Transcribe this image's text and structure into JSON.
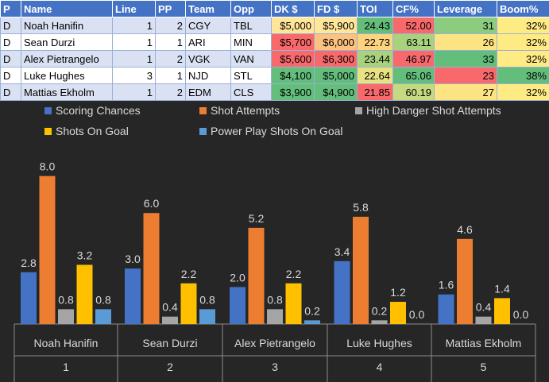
{
  "table": {
    "headers": [
      "P",
      "Name",
      "Line",
      "PP",
      "Team",
      "Opp",
      "DK $",
      "FD $",
      "TOI",
      "CF%",
      "Leverage",
      "Boom%"
    ],
    "rows": [
      [
        "D",
        "Noah Hanifin",
        "1",
        "2",
        "CGY",
        "TBL",
        "$5,000",
        "$5,900",
        "24.43",
        "52.00",
        "31",
        "32%"
      ],
      [
        "D",
        "Sean Durzi",
        "1",
        "1",
        "ARI",
        "MIN",
        "$5,700",
        "$6,000",
        "22.73",
        "63.11",
        "26",
        "32%"
      ],
      [
        "D",
        "Alex Pietrangelo",
        "1",
        "2",
        "VGK",
        "VAN",
        "$5,600",
        "$6,300",
        "23.44",
        "46.97",
        "33",
        "32%"
      ],
      [
        "D",
        "Luke Hughes",
        "3",
        "1",
        "NJD",
        "STL",
        "$4,100",
        "$5,000",
        "22.64",
        "65.06",
        "23",
        "38%"
      ],
      [
        "D",
        "Mattias Ekholm",
        "1",
        "2",
        "EDM",
        "CLS",
        "$3,900",
        "$4,900",
        "21.85",
        "60.19",
        "27",
        "32%"
      ]
    ],
    "cell_colors": {
      "dk": [
        "#ffe699",
        "#f8696b",
        "#f8696b",
        "#63be7b",
        "#63be7b"
      ],
      "fd": [
        "#ffe699",
        "#fcc27f",
        "#f8696b",
        "#63be7b",
        "#63be7b"
      ],
      "toi": [
        "#63be7b",
        "#fcd37f",
        "#a9d27f",
        "#e9e283",
        "#f8696b"
      ],
      "cf": [
        "#f8696b",
        "#a9d27f",
        "#f8696b",
        "#63be7b",
        "#c5da80"
      ],
      "leverage": [
        "#8ccc7e",
        "#fde483",
        "#63be7b",
        "#f8696b",
        "#fde483"
      ],
      "boom": [
        "#ffeb84",
        "#ffeb84",
        "#ffeb84",
        "#63be7b",
        "#ffeb84"
      ]
    }
  },
  "chart_data": {
    "type": "bar",
    "categories": [
      "Noah Hanifin",
      "Sean Durzi",
      "Alex Pietrangelo",
      "Luke Hughes",
      "Mattias Ekholm"
    ],
    "category_index": [
      "1",
      "2",
      "3",
      "4",
      "5"
    ],
    "series": [
      {
        "name": "Scoring Chances",
        "color": "#4472c4",
        "values": [
          2.8,
          3.0,
          2.0,
          3.4,
          1.6
        ]
      },
      {
        "name": "Shot Attempts",
        "color": "#ed7d31",
        "values": [
          8.0,
          6.0,
          5.2,
          5.8,
          4.6
        ]
      },
      {
        "name": "High Danger Shot Attempts",
        "color": "#a5a5a5",
        "values": [
          0.8,
          0.4,
          0.8,
          0.2,
          0.4
        ]
      },
      {
        "name": "Shots On Goal",
        "color": "#ffc000",
        "values": [
          3.2,
          2.2,
          2.2,
          1.2,
          1.4
        ]
      },
      {
        "name": "Power Play Shots On Goal",
        "color": "#5b9bd5",
        "values": [
          0.8,
          0.8,
          0.2,
          0.0,
          0.0
        ]
      }
    ],
    "ylim": [
      0,
      8.5
    ],
    "legend_position": "top",
    "grid": false
  }
}
